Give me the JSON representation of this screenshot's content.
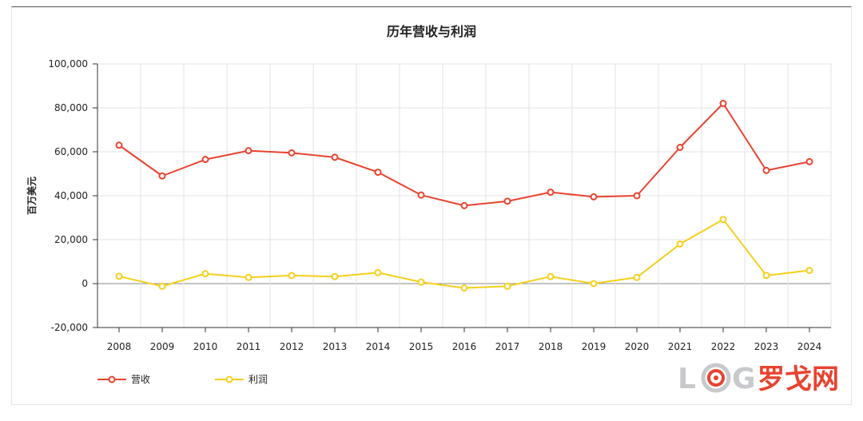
{
  "chart_data": {
    "type": "line",
    "title": "历年营收与利润",
    "ylabel": "百万美元",
    "xlabel": "",
    "ylim": [
      -20000,
      100000
    ],
    "yticks": [
      -20000,
      0,
      20000,
      40000,
      60000,
      80000,
      100000
    ],
    "ytick_labels": [
      "-20,000",
      "0",
      "20,000",
      "40,000",
      "60,000",
      "80,000",
      "100,000"
    ],
    "categories": [
      "2008",
      "2009",
      "2010",
      "2011",
      "2012",
      "2013",
      "2014",
      "2015",
      "2016",
      "2017",
      "2018",
      "2019",
      "2020",
      "2021",
      "2022",
      "2023",
      "2024"
    ],
    "grid": true,
    "legend_position": "bottom-left",
    "series": [
      {
        "name": "营收",
        "color": "#e8432f",
        "values": [
          63000,
          49000,
          56500,
          60500,
          59500,
          57500,
          50700,
          40300,
          35500,
          37500,
          41600,
          39500,
          40000,
          62000,
          82000,
          51500,
          55500
        ]
      },
      {
        "name": "利润",
        "color": "#f5cf1a",
        "values": [
          3300,
          -1200,
          4500,
          2800,
          3700,
          3200,
          5000,
          700,
          -2000,
          -1200,
          3200,
          0,
          2800,
          18000,
          29200,
          3700,
          6000
        ]
      }
    ]
  },
  "watermark": {
    "logo_letters": [
      "L",
      "G"
    ],
    "brand": "罗戈网"
  }
}
